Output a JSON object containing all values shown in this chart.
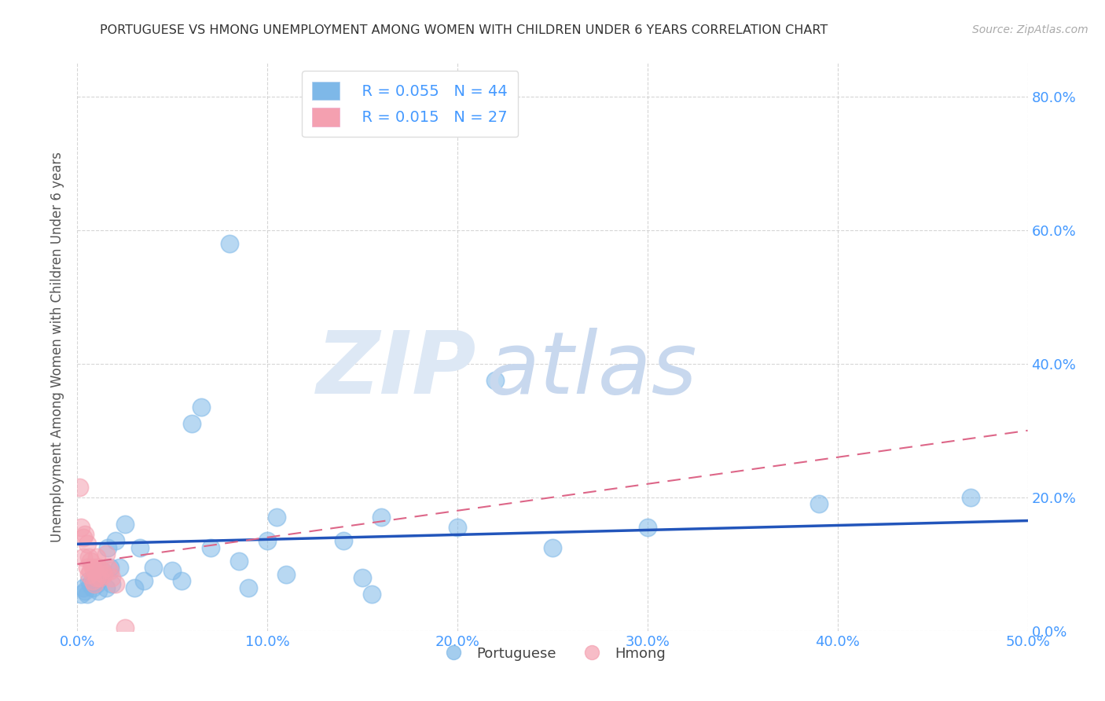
{
  "title": "PORTUGUESE VS HMONG UNEMPLOYMENT AMONG WOMEN WITH CHILDREN UNDER 6 YEARS CORRELATION CHART",
  "source": "Source: ZipAtlas.com",
  "ylabel": "Unemployment Among Women with Children Under 6 years",
  "xlim": [
    0.0,
    0.5
  ],
  "ylim": [
    0.0,
    0.85
  ],
  "portuguese_color": "#7eb8e8",
  "hmong_color": "#f4a0b0",
  "portuguese_line_color": "#2255bb",
  "hmong_line_color": "#dd6688",
  "portuguese_R": 0.055,
  "portuguese_N": 44,
  "hmong_R": 0.015,
  "hmong_N": 27,
  "tick_color": "#4499ff",
  "watermark_zip_color": "#dde8f5",
  "watermark_atlas_color": "#c8d8ee",
  "portuguese_x": [
    0.002,
    0.003,
    0.004,
    0.005,
    0.006,
    0.007,
    0.008,
    0.009,
    0.01,
    0.011,
    0.012,
    0.013,
    0.015,
    0.016,
    0.017,
    0.018,
    0.02,
    0.022,
    0.025,
    0.03,
    0.033,
    0.035,
    0.04,
    0.05,
    0.055,
    0.06,
    0.065,
    0.07,
    0.08,
    0.085,
    0.09,
    0.1,
    0.105,
    0.11,
    0.14,
    0.15,
    0.155,
    0.16,
    0.2,
    0.22,
    0.25,
    0.3,
    0.39,
    0.47
  ],
  "portuguese_y": [
    0.055,
    0.065,
    0.06,
    0.055,
    0.075,
    0.07,
    0.065,
    0.08,
    0.07,
    0.06,
    0.08,
    0.09,
    0.065,
    0.125,
    0.095,
    0.07,
    0.135,
    0.095,
    0.16,
    0.065,
    0.125,
    0.075,
    0.095,
    0.09,
    0.075,
    0.31,
    0.335,
    0.125,
    0.58,
    0.105,
    0.065,
    0.135,
    0.17,
    0.085,
    0.135,
    0.08,
    0.055,
    0.17,
    0.155,
    0.375,
    0.125,
    0.155,
    0.19,
    0.2
  ],
  "hmong_x": [
    0.001,
    0.002,
    0.003,
    0.003,
    0.004,
    0.005,
    0.005,
    0.006,
    0.006,
    0.007,
    0.007,
    0.008,
    0.008,
    0.009,
    0.009,
    0.01,
    0.01,
    0.011,
    0.012,
    0.013,
    0.014,
    0.015,
    0.016,
    0.017,
    0.018,
    0.02,
    0.025
  ],
  "hmong_y": [
    0.215,
    0.155,
    0.11,
    0.14,
    0.145,
    0.095,
    0.13,
    0.085,
    0.11,
    0.09,
    0.105,
    0.075,
    0.095,
    0.07,
    0.09,
    0.08,
    0.11,
    0.095,
    0.08,
    0.09,
    0.085,
    0.115,
    0.095,
    0.09,
    0.08,
    0.07,
    0.005
  ],
  "port_trend_x": [
    0.0,
    0.5
  ],
  "port_trend_y": [
    0.13,
    0.165
  ],
  "hmong_trend_x": [
    0.0,
    0.5
  ],
  "hmong_trend_y": [
    0.1,
    0.3
  ]
}
